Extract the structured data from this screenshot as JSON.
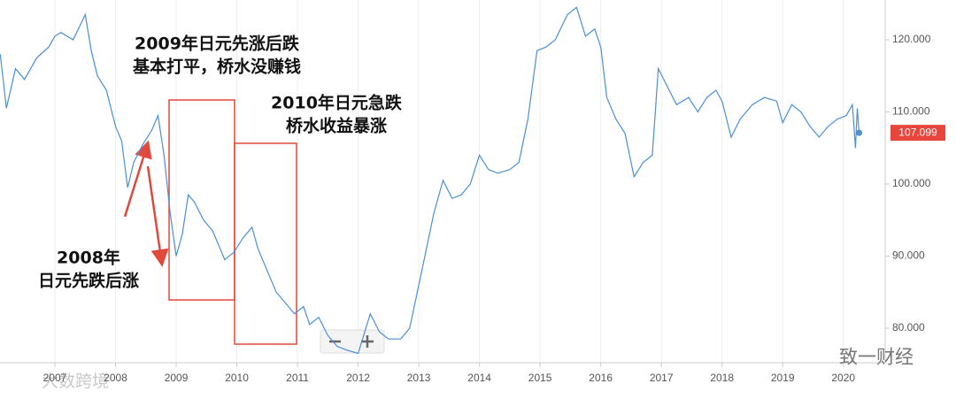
{
  "chart_data": {
    "type": "line",
    "color": "#4a8fd8",
    "x": [
      2006.1,
      2006.2,
      2006.35,
      2006.5,
      2006.7,
      2006.9,
      2007.0,
      2007.1,
      2007.3,
      2007.5,
      2007.6,
      2007.7,
      2007.85,
      2008.0,
      2008.1,
      2008.2,
      2008.3,
      2008.45,
      2008.6,
      2008.7,
      2008.8,
      2008.9,
      2009.0,
      2009.1,
      2009.2,
      2009.3,
      2009.45,
      2009.6,
      2009.8,
      2009.95,
      2010.1,
      2010.25,
      2010.35,
      2010.5,
      2010.65,
      2010.8,
      2010.95,
      2011.1,
      2011.2,
      2011.35,
      2011.5,
      2011.65,
      2011.8,
      2012.0,
      2012.2,
      2012.35,
      2012.5,
      2012.7,
      2012.85,
      2013.0,
      2013.1,
      2013.25,
      2013.4,
      2013.55,
      2013.7,
      2013.85,
      2014.0,
      2014.15,
      2014.3,
      2014.5,
      2014.65,
      2014.8,
      2014.95,
      2015.1,
      2015.25,
      2015.45,
      2015.6,
      2015.75,
      2015.9,
      2016.0,
      2016.1,
      2016.25,
      2016.4,
      2016.55,
      2016.7,
      2016.85,
      2016.95,
      2017.1,
      2017.25,
      2017.45,
      2017.6,
      2017.75,
      2017.9,
      2018.0,
      2018.15,
      2018.3,
      2018.5,
      2018.7,
      2018.9,
      2019.0,
      2019.15,
      2019.3,
      2019.45,
      2019.6,
      2019.75,
      2019.9,
      2020.05,
      2020.15,
      2020.2,
      2020.23,
      2020.26
    ],
    "values": [
      118,
      110.5,
      116,
      114.5,
      117.5,
      119,
      120.5,
      121,
      120,
      123.5,
      118.5,
      115,
      113,
      108,
      106,
      99.5,
      103,
      105.5,
      107.5,
      109.5,
      104,
      96,
      90,
      93,
      98.5,
      97.5,
      95,
      93.5,
      89.5,
      90.5,
      92.5,
      94,
      91,
      88,
      85,
      83.5,
      82,
      83,
      80.5,
      81.5,
      79,
      77.5,
      77,
      76.5,
      82,
      79.5,
      78.5,
      78.5,
      80,
      86,
      90,
      96,
      100.5,
      98,
      98.5,
      100,
      104,
      102,
      101.5,
      102,
      103,
      109,
      118.5,
      119,
      120,
      123.5,
      124.5,
      120.5,
      121.5,
      119,
      112,
      109,
      107,
      101,
      103,
      104,
      116,
      113.5,
      111,
      112,
      110,
      112,
      113,
      111.5,
      106.5,
      109,
      111,
      112,
      111.5,
      108.5,
      111,
      110,
      108,
      106.5,
      108,
      109,
      109.5,
      111,
      105,
      110.5,
      107.099
    ],
    "xlim": [
      2006.095,
      2020.69
    ],
    "ylim": [
      75.21,
      125.52
    ],
    "xticks": [
      2007,
      2008,
      2009,
      2010,
      2011,
      2012,
      2013,
      2014,
      2015,
      2016,
      2017,
      2018,
      2019,
      2020
    ],
    "yticks": [
      {
        "value": 80,
        "label": "80.000"
      },
      {
        "value": 90,
        "label": "90.000"
      },
      {
        "value": 100,
        "label": "100.000"
      },
      {
        "value": 110,
        "label": "110.000"
      },
      {
        "value": 120,
        "label": "120.000"
      }
    ],
    "grid": true,
    "annotations": [
      [
        "2009年日元先涨后跌",
        "基本打平，桥水没赚钱"
      ],
      [
        "2010年日元急跌",
        "桥水收益暴涨"
      ],
      [
        "2008年",
        "日元先跌后涨"
      ]
    ],
    "watermarks": [
      "致一财经",
      "大数跨境"
    ]
  }
}
